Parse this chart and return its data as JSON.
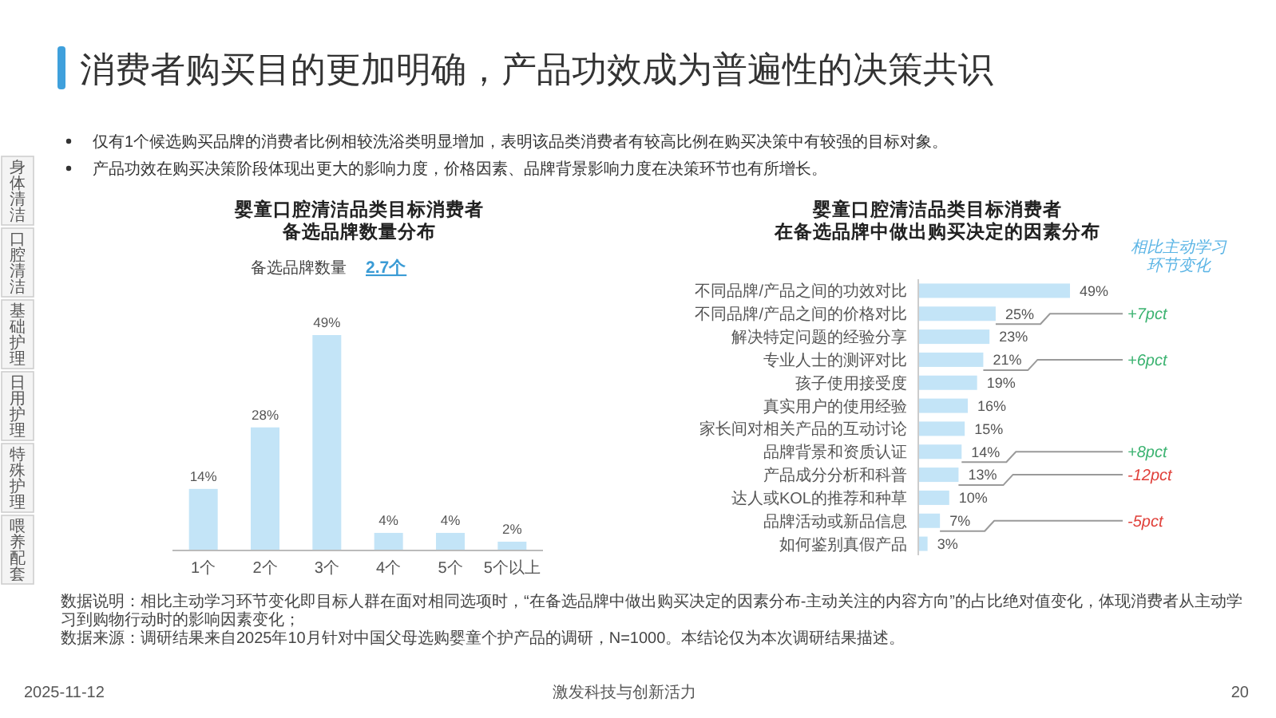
{
  "chart_data": [
    {
      "type": "other",
      "title": "消费者购买目的更加明确，产品功效成为普遍性的决策共识",
      "annotations": [
        "仅有1个候选购买品牌的消费者比例相较洗浴类明显增加，表明该品类消费者有较高比例在购买决策中有较强的目标对象。",
        "产品功效在购买决策阶段体现出更大的影响力度，价格因素、品牌背景影响力度在决策环节也有所增长。"
      ]
    },
    {
      "type": "other",
      "annotations": [
        "身体清洁",
        "口腔清洁",
        "基础护理",
        "日用护理",
        "特殊护理",
        "喂养配套"
      ]
    },
    {
      "type": "bar",
      "title": "婴童口腔清洁品类目标消费者备选品牌数量分布",
      "subtitle": "备选品牌数量",
      "annotations": [
        "2.7个"
      ],
      "categories": [
        "1个",
        "2个",
        "3个",
        "4个",
        "5个",
        "5个以上"
      ],
      "values": [
        14,
        28,
        49,
        4,
        4,
        2
      ],
      "value_labels": [
        "14%",
        "28%",
        "49%",
        "4%",
        "4%",
        "2%"
      ],
      "color": "#c3e4f7"
    },
    {
      "type": "bar",
      "orientation": "horizontal",
      "title": "婴童口腔清洁品类目标消费者在备选品牌中做出购买决定的因素分布",
      "categories": [
        "不同品牌/产品之间的功效对比",
        "不同品牌/产品之间的价格对比",
        "解决特定问题的经验分享",
        "专业人士的测评对比",
        "孩子使用接受度",
        "真实用户的使用经验",
        "家长间对相关产品的互动讨论",
        "品牌背景和资质认证",
        "产品成分分析和科普",
        "达人或KOL的推荐和种草",
        "品牌活动或新品信息",
        "如何鉴别真假产品"
      ],
      "values": [
        49,
        25,
        23,
        21,
        19,
        16,
        15,
        14,
        13,
        10,
        7,
        3
      ],
      "value_labels": [
        "49%",
        "25%",
        "23%",
        "21%",
        "19%",
        "16%",
        "15%",
        "14%",
        "13%",
        "10%",
        "7%",
        "3%"
      ],
      "color": "#c3e4f7",
      "annotations": [
        "相比主动学习环节变化",
        {
          "text": "+7pct",
          "x": 25,
          "y": "不同品牌/产品之间的价格对比"
        },
        {
          "text": "+6pct",
          "x": 21,
          "y": "专业人士的测评对比"
        },
        {
          "text": "+8pct",
          "x": 14,
          "y": "品牌背景和资质认证"
        },
        {
          "text": "-12pct",
          "x": 13,
          "y": "产品成分分析和科普"
        },
        {
          "text": "-5pct",
          "x": 7,
          "y": "品牌活动或新品信息"
        }
      ]
    },
    {
      "type": "other",
      "annotations": [
        "数据说明：相比主动学习环节变化即目标人群在面对相同选项时，“在备选品牌中做出购买决定的因素分布-主动关注的内容方向”的占比绝对值变化，体现消费者从主动学习到购物行动时的影响因素变化；",
        "数据来源：调研结果来自2025年10月针对中国父母选购婴童个护产品的调研，N=1000。本结论仅为本次调研结果描述。"
      ]
    },
    {
      "type": "other",
      "annotations": [
        "2025-11-12",
        "激发科技与创新活力",
        "20"
      ]
    }
  ]
}
